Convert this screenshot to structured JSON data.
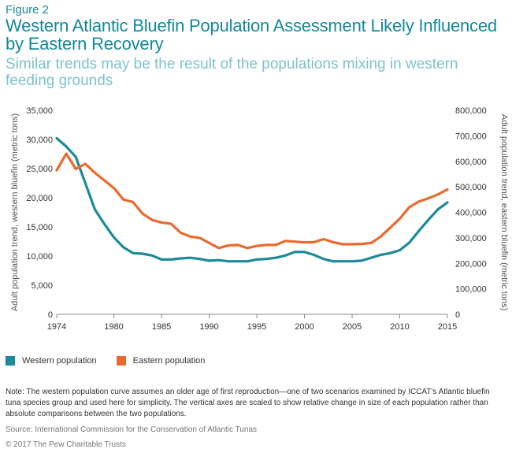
{
  "figure_label": "Figure 2",
  "title": "Western Atlantic Bluefin Population Assessment Likely Influenced by Eastern Recovery",
  "subtitle": "Similar trends may be the result of the populations mixing in western feeding grounds",
  "note": "Note: The western population curve assumes an older age of first reproduction—one of two scenarios examined by ICCAT's Atlantic bluefin tuna species group and used here for simplicity. The vertical axes are scaled to show relative change in size of each population rather than absolute comparisons between the two populations.",
  "source": "Source: International Commission for the Conservation of Atlantic Tunas",
  "copyright": "© 2017 The Pew Charitable Trusts",
  "colors": {
    "western": "#1b8a99",
    "eastern": "#e96a2e",
    "axis": "#888888",
    "title": "#14899a"
  },
  "chart_data": {
    "type": "line",
    "xlabel": "",
    "ylabel_left": "Adult population trend, western bluefin (metric tons)",
    "ylabel_right": "Adult population trend, eastern bluefin (metric tons)",
    "xlim": [
      1974,
      2015
    ],
    "x_ticks": [
      "1974",
      "1980",
      "1985",
      "1990",
      "1995",
      "2000",
      "2005",
      "2010",
      "2015"
    ],
    "ylim_left": [
      0,
      35000
    ],
    "ylim_right": [
      0,
      800000
    ],
    "y_ticks_left": [
      "0",
      "5,000",
      "10,000",
      "15,000",
      "20,000",
      "25,000",
      "30,000",
      "35,000"
    ],
    "y_ticks_right": [
      "0",
      "100,000",
      "200,000",
      "300,000",
      "400,000",
      "500,000",
      "600,000",
      "700,000",
      "800,000"
    ],
    "grid": false,
    "legend_position": "bottom-left",
    "series": [
      {
        "name": "Western population",
        "axis": "left",
        "x": [
          1974,
          1975,
          1976,
          1977,
          1978,
          1979,
          1980,
          1981,
          1982,
          1983,
          1984,
          1985,
          1986,
          1987,
          1988,
          1989,
          1990,
          1991,
          1992,
          1993,
          1994,
          1995,
          1996,
          1997,
          1998,
          1999,
          2000,
          2001,
          2002,
          2003,
          2004,
          2005,
          2006,
          2007,
          2008,
          2009,
          2010,
          2011,
          2012,
          2013,
          2014,
          2015
        ],
        "values": [
          30200,
          28800,
          27000,
          22500,
          18000,
          15500,
          13200,
          11500,
          10500,
          10400,
          10100,
          9400,
          9400,
          9600,
          9700,
          9500,
          9200,
          9300,
          9100,
          9100,
          9100,
          9400,
          9500,
          9700,
          10100,
          10700,
          10700,
          10200,
          9500,
          9100,
          9100,
          9100,
          9200,
          9700,
          10200,
          10500,
          11000,
          12300,
          14300,
          16200,
          18000,
          19200
        ]
      },
      {
        "name": "Eastern population",
        "axis": "right",
        "x": [
          1974,
          1975,
          1976,
          1977,
          1978,
          1979,
          1980,
          1981,
          1982,
          1983,
          1984,
          1985,
          1986,
          1987,
          1988,
          1989,
          1990,
          1991,
          1992,
          1993,
          1994,
          1995,
          1996,
          1997,
          1998,
          1999,
          2000,
          2001,
          2002,
          2003,
          2004,
          2005,
          2006,
          2007,
          2008,
          2009,
          2010,
          2011,
          2012,
          2013,
          2014,
          2015
        ],
        "values": [
          565000,
          630000,
          570000,
          590000,
          555000,
          525000,
          495000,
          450000,
          440000,
          395000,
          370000,
          360000,
          355000,
          320000,
          305000,
          300000,
          280000,
          260000,
          270000,
          272000,
          260000,
          268000,
          272000,
          272000,
          288000,
          285000,
          282000,
          283000,
          295000,
          283000,
          275000,
          275000,
          276000,
          280000,
          305000,
          340000,
          375000,
          420000,
          442000,
          455000,
          470000,
          490000
        ]
      }
    ]
  }
}
